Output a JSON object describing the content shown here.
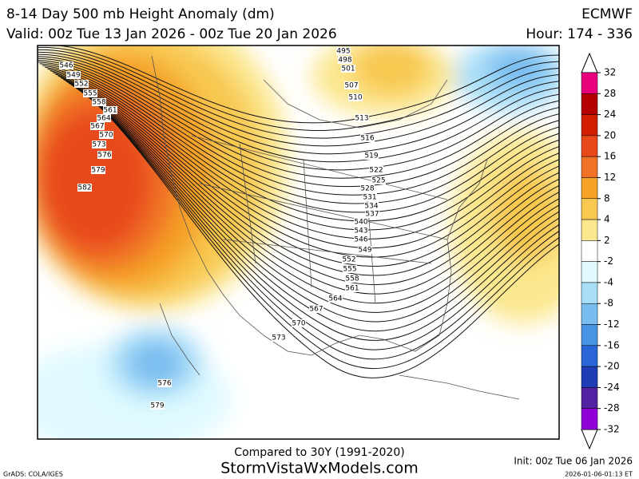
{
  "header": {
    "title": "8-14 Day 500 mb Height Anomaly (dm)",
    "valid": "Valid: 00z Tue 13 Jan 2026 - 00z Tue 20 Jan 2026",
    "model": "ECMWF",
    "hour": "Hour: 174 - 336"
  },
  "colorbar": {
    "levels": [
      32,
      28,
      24,
      20,
      16,
      12,
      8,
      4,
      2,
      -2,
      -4,
      -8,
      -12,
      -16,
      -20,
      -24,
      -28,
      -32
    ],
    "colors": [
      "#e8007d",
      "#b40000",
      "#d21e00",
      "#e8481a",
      "#f07226",
      "#f5a228",
      "#f8c850",
      "#fbe78e",
      "#ffffff",
      "#e0faff",
      "#a8def8",
      "#78bcf0",
      "#4a94e6",
      "#2a66d8",
      "#1e3cb4",
      "#5222a2",
      "#9000d8"
    ]
  },
  "contour_labels": {
    "west": [
      546,
      549,
      552,
      555,
      558,
      561,
      564,
      567,
      570,
      573,
      576,
      579,
      582
    ],
    "east": [
      495,
      498,
      501,
      507,
      510,
      513,
      516,
      519,
      522,
      525,
      528,
      531,
      534,
      537,
      540,
      543,
      546,
      549,
      552,
      555,
      558,
      561,
      564,
      567,
      570,
      573,
      576,
      579
    ]
  },
  "footer": {
    "compared": "Compared to 30Y (1991-2020)",
    "site": "StormVistaWxModels.com",
    "credit": "GrADS: COLA/IGES",
    "init": "Init: 00z Tue 06 Jan 2026",
    "timestamp": "2026-01-06-01:13 ET"
  }
}
